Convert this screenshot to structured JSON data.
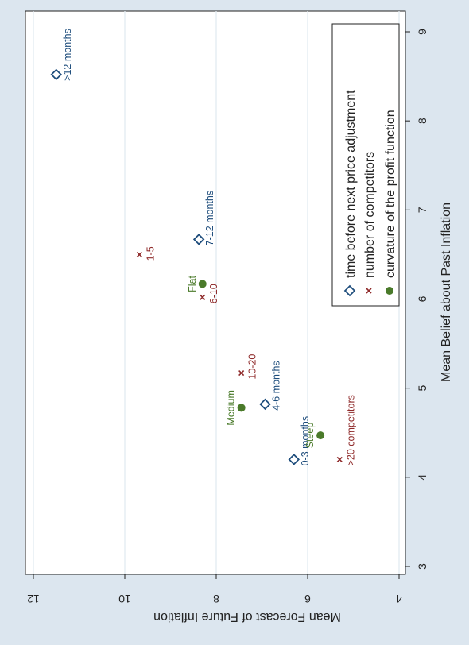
{
  "chart_data": {
    "type": "scatter",
    "title": "",
    "orientation": "rotated-90",
    "xlabel": "Mean Belief about Past Inflation",
    "ylabel": "Mean Forecast of Future Inflation",
    "xlim": [
      3,
      9
    ],
    "ylim": [
      4,
      12
    ],
    "xticks": [
      3,
      4,
      5,
      6,
      7,
      8,
      9
    ],
    "yticks": [
      4,
      6,
      8,
      10,
      12
    ],
    "grid": true,
    "legend_position": "inside-top-right",
    "colors": {
      "background": "#dce6ef",
      "plot": "#ffffff",
      "grid": "#e2eaf1",
      "series1": "#1e4d7c",
      "series2": "#8f2a2a",
      "series3": "#4a7a2a"
    },
    "series": [
      {
        "name": "time before next price adjustment",
        "marker": "diamond",
        "points": [
          {
            "x": 4.2,
            "y": 6.3,
            "label": "0-3 months"
          },
          {
            "x": 4.82,
            "y": 6.93,
            "label": "4-6 months"
          },
          {
            "x": 6.67,
            "y": 8.38,
            "label": "7-12 months"
          },
          {
            "x": 8.52,
            "y": 11.5,
            "label": ">12 months"
          }
        ]
      },
      {
        "name": "number of competitors",
        "marker": "x",
        "points": [
          {
            "x": 4.2,
            "y": 5.3,
            "label": ">20 competitors"
          },
          {
            "x": 5.17,
            "y": 7.45,
            "label": "10-20"
          },
          {
            "x": 6.02,
            "y": 8.3,
            "label": "6-10"
          },
          {
            "x": 6.5,
            "y": 9.68,
            "label": "1-5"
          }
        ]
      },
      {
        "name": "curvature of the profit function",
        "marker": "circle",
        "points": [
          {
            "x": 4.47,
            "y": 5.72,
            "label": "Steep"
          },
          {
            "x": 4.78,
            "y": 7.45,
            "label": "Medium"
          },
          {
            "x": 6.17,
            "y": 8.3,
            "label": "Flat"
          }
        ]
      }
    ]
  }
}
